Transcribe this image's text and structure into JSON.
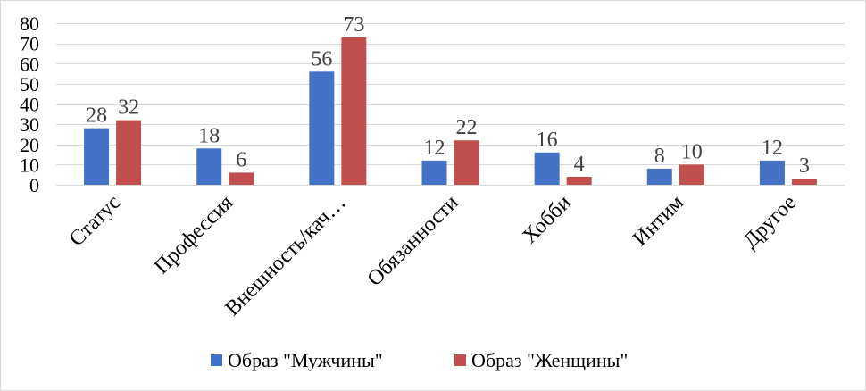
{
  "chart_data": {
    "type": "bar",
    "categories": [
      "Статус",
      "Профессия",
      "Внешность/кач…",
      "Обязанности",
      "Хобби",
      "Интим",
      "Другое"
    ],
    "series": [
      {
        "name": "Образ \"Мужчины\"",
        "color": "#4472C4",
        "values": [
          28,
          18,
          56,
          12,
          16,
          8,
          12
        ]
      },
      {
        "name": "Образ \"Женщины\"",
        "color": "#C0504D",
        "values": [
          32,
          6,
          73,
          22,
          4,
          10,
          3
        ]
      }
    ],
    "ylim": [
      0,
      80
    ],
    "yticks": [
      0,
      10,
      20,
      30,
      40,
      50,
      60,
      70,
      80
    ],
    "grid": true,
    "legend_position": "bottom",
    "data_labels": true
  }
}
